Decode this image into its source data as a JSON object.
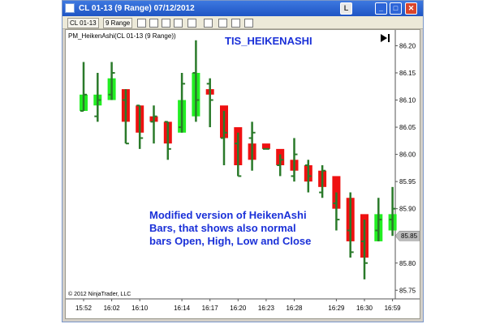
{
  "window": {
    "title": "CL 01-13 (9 Range)  07/12/2012",
    "link_label": "L",
    "min_label": "_",
    "max_label": "□",
    "close_label": "✕"
  },
  "toolbar": {
    "instrument": "CL 01-13",
    "interval": "9 Range",
    "icons": [
      "bar-type-icon",
      "pencil-icon",
      "crosshair-icon",
      "cursor-icon",
      "zoom-icon",
      "properties-icon",
      "data-box-icon",
      "print-icon",
      "share-icon"
    ]
  },
  "chart": {
    "indicator_label": "PM_HeikenAshi(CL 01-13 (9 Range))",
    "overlay_title": "TIS_HEIKENASHI",
    "annotation": [
      "Modified version of HeikenAshi",
      "Bars, that shows also normal",
      "bars Open, High, Low and Close"
    ],
    "copyright": "© 2012 NinjaTrader, LLC",
    "price_marker": "85.85"
  },
  "colors": {
    "up": "#22ee22",
    "down": "#ee1111",
    "ohlc": "#2a7a2a",
    "title_blue": "#1a30d8",
    "marker_bg": "#bdbdbd"
  },
  "chart_data": {
    "type": "ohlc+heikenashi",
    "x_labels": [
      "15:52",
      "16:02",
      "16:10",
      "16:14",
      "16:17",
      "16:20",
      "16:23",
      "16:28",
      "16:29",
      "16:30",
      "16:59"
    ],
    "y_ticks": [
      "86.20",
      "86.15",
      "86.10",
      "86.05",
      "86.00",
      "85.95",
      "85.90",
      "85.85",
      "85.80",
      "85.75"
    ],
    "ylim": [
      85.74,
      86.22
    ],
    "bars": [
      {
        "o": 86.08,
        "h": 86.17,
        "l": 86.08,
        "c": 86.11,
        "ha_o": 86.08,
        "ha_c": 86.11
      },
      {
        "o": 86.07,
        "h": 86.15,
        "l": 86.06,
        "c": 86.1,
        "ha_o": 86.09,
        "ha_c": 86.11
      },
      {
        "o": 86.11,
        "h": 86.17,
        "l": 86.1,
        "c": 86.15,
        "ha_o": 86.1,
        "ha_c": 86.14
      },
      {
        "o": 86.1,
        "h": 86.12,
        "l": 86.02,
        "c": 86.02,
        "ha_o": 86.12,
        "ha_c": 86.06
      },
      {
        "o": 86.09,
        "h": 86.09,
        "l": 86.01,
        "c": 86.03,
        "ha_o": 86.09,
        "ha_c": 86.04
      },
      {
        "o": 86.06,
        "h": 86.09,
        "l": 86.02,
        "c": 86.07,
        "ha_o": 86.07,
        "ha_c": 86.06
      },
      {
        "o": 86.06,
        "h": 86.06,
        "l": 85.99,
        "c": 86.01,
        "ha_o": 86.06,
        "ha_c": 86.02
      },
      {
        "o": 86.05,
        "h": 86.15,
        "l": 86.04,
        "c": 86.13,
        "ha_o": 86.04,
        "ha_c": 86.1
      },
      {
        "o": 86.15,
        "h": 86.21,
        "l": 86.06,
        "c": 86.1,
        "ha_o": 86.07,
        "ha_c": 86.15
      },
      {
        "o": 86.13,
        "h": 86.14,
        "l": 86.05,
        "c": 86.1,
        "ha_o": 86.12,
        "ha_c": 86.11
      },
      {
        "o": 86.03,
        "h": 86.08,
        "l": 85.98,
        "c": 86.04,
        "ha_o": 86.09,
        "ha_c": 86.03
      },
      {
        "o": 86.02,
        "h": 86.04,
        "l": 85.96,
        "c": 85.96,
        "ha_o": 86.05,
        "ha_c": 85.98
      },
      {
        "o": 86.03,
        "h": 86.06,
        "l": 85.97,
        "c": 86.04,
        "ha_o": 86.02,
        "ha_c": 85.99
      },
      {
        "o": 86.01,
        "h": 86.01,
        "l": 86.01,
        "c": 86.01,
        "ha_o": 86.02,
        "ha_c": 86.01
      },
      {
        "o": 85.98,
        "h": 86.0,
        "l": 85.96,
        "c": 85.99,
        "ha_o": 86.01,
        "ha_c": 85.98
      },
      {
        "o": 85.96,
        "h": 86.03,
        "l": 85.95,
        "c": 86.0,
        "ha_o": 85.99,
        "ha_c": 85.97
      },
      {
        "o": 85.98,
        "h": 85.99,
        "l": 85.93,
        "c": 85.96,
        "ha_o": 85.98,
        "ha_c": 85.95
      },
      {
        "o": 85.93,
        "h": 85.98,
        "l": 85.92,
        "c": 85.97,
        "ha_o": 85.97,
        "ha_c": 85.94
      },
      {
        "o": 85.91,
        "h": 85.93,
        "l": 85.86,
        "c": 85.88,
        "ha_o": 85.96,
        "ha_c": 85.9
      },
      {
        "o": 85.86,
        "h": 85.93,
        "l": 85.81,
        "c": 85.82,
        "ha_o": 85.92,
        "ha_c": 85.84
      },
      {
        "o": 85.84,
        "h": 85.88,
        "l": 85.77,
        "c": 85.8,
        "ha_o": 85.89,
        "ha_c": 85.81
      },
      {
        "o": 85.86,
        "h": 85.92,
        "l": 85.84,
        "c": 85.88,
        "ha_o": 85.84,
        "ha_c": 85.89
      },
      {
        "o": 85.88,
        "h": 85.94,
        "l": 85.85,
        "c": 85.9,
        "ha_o": 85.86,
        "ha_c": 85.89
      }
    ]
  }
}
